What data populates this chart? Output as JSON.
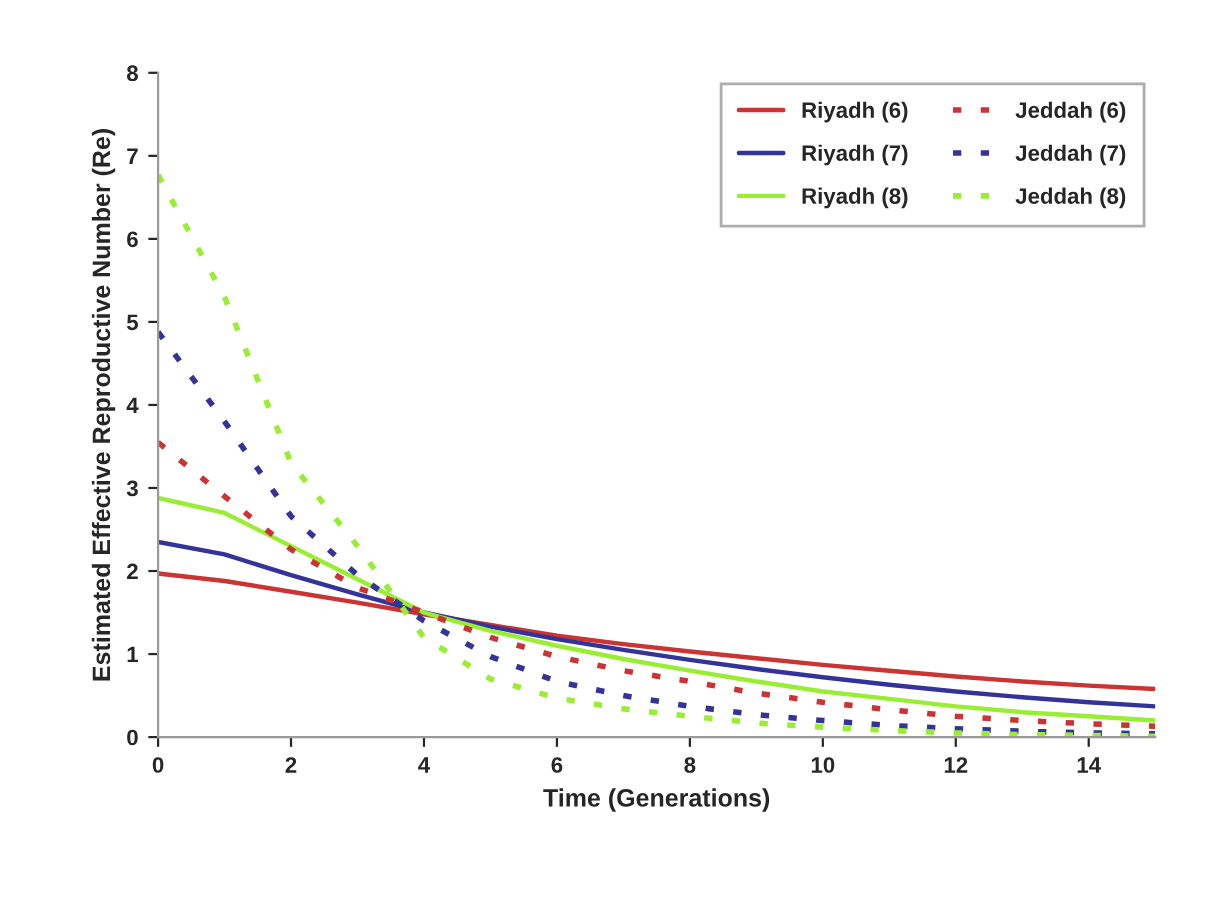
{
  "chart_data": {
    "type": "line",
    "xlabel": "Time (Generations)",
    "ylabel": "Estimated Effective Reproductive Number (Re)",
    "x": [
      0,
      1,
      2,
      3,
      4,
      5,
      6,
      7,
      8,
      9,
      10,
      11,
      12,
      13,
      14,
      15
    ],
    "xlim": [
      0,
      15
    ],
    "xticks": [
      0,
      2,
      4,
      6,
      8,
      10,
      12,
      14
    ],
    "ylim": [
      0,
      8
    ],
    "yticks": [
      0,
      1,
      2,
      3,
      4,
      5,
      6,
      7,
      8
    ],
    "grid": false,
    "legend": "top right",
    "marker": "none",
    "series": [
      {
        "name": "Riyadh (6)",
        "color": "#cc3333",
        "line_style": "solid",
        "values": [
          1.97,
          1.88,
          1.75,
          1.62,
          1.48,
          1.35,
          1.22,
          1.12,
          1.03,
          0.95,
          0.87,
          0.8,
          0.73,
          0.67,
          0.62,
          0.58
        ]
      },
      {
        "name": "Riyadh (7)",
        "color": "#333399",
        "line_style": "solid",
        "values": [
          2.35,
          2.2,
          1.95,
          1.72,
          1.5,
          1.33,
          1.18,
          1.05,
          0.93,
          0.82,
          0.72,
          0.63,
          0.55,
          0.48,
          0.42,
          0.37
        ]
      },
      {
        "name": "Riyadh (8)",
        "color": "#99ee33",
        "line_style": "solid",
        "values": [
          2.88,
          2.7,
          2.3,
          1.9,
          1.5,
          1.28,
          1.1,
          0.94,
          0.8,
          0.67,
          0.55,
          0.46,
          0.37,
          0.3,
          0.25,
          0.2
        ]
      },
      {
        "name": "Jeddah (6)",
        "color": "#cc3333",
        "line_style": "dotted",
        "values": [
          3.55,
          2.9,
          2.26,
          1.8,
          1.5,
          1.2,
          0.97,
          0.8,
          0.67,
          0.53,
          0.42,
          0.33,
          0.25,
          0.2,
          0.16,
          0.13
        ]
      },
      {
        "name": "Jeddah (7)",
        "color": "#333399",
        "line_style": "dotted",
        "values": [
          4.88,
          3.8,
          2.66,
          1.95,
          1.4,
          0.97,
          0.67,
          0.5,
          0.37,
          0.27,
          0.2,
          0.14,
          0.1,
          0.07,
          0.05,
          0.04
        ]
      },
      {
        "name": "Jeddah (8)",
        "color": "#99ee33",
        "line_style": "dotted",
        "values": [
          6.77,
          5.3,
          3.3,
          2.3,
          1.2,
          0.7,
          0.47,
          0.34,
          0.25,
          0.17,
          0.12,
          0.08,
          0.05,
          0.03,
          0.02,
          0.01
        ]
      }
    ]
  }
}
